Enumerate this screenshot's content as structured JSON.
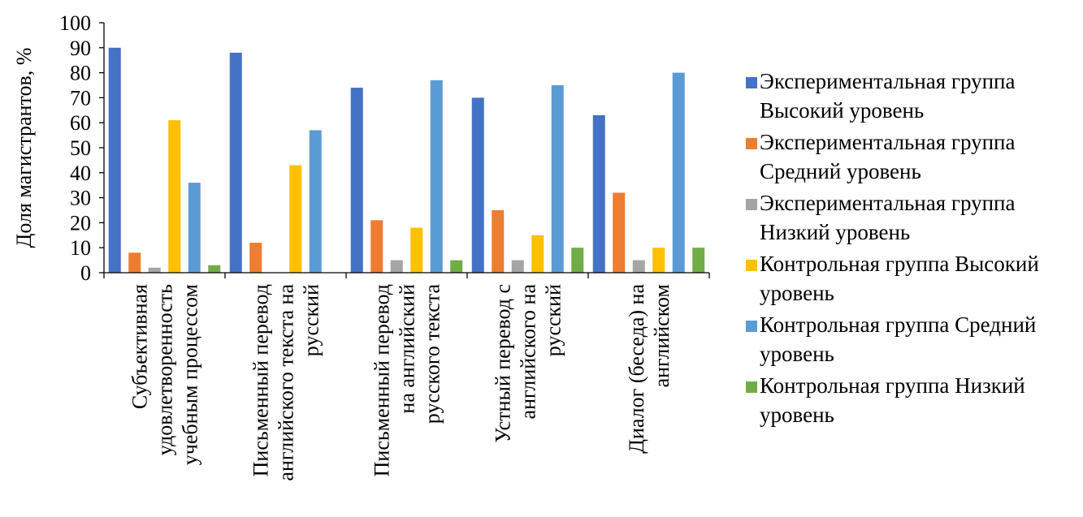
{
  "chart_data": {
    "type": "bar",
    "ylabel": "Доля магистрантов, %",
    "xlabel": "",
    "ylim": [
      0,
      100
    ],
    "yticks": [
      0,
      10,
      20,
      30,
      40,
      50,
      60,
      70,
      80,
      90,
      100
    ],
    "grid": false,
    "legend_position": "right",
    "categories": [
      [
        "Субъективная",
        "удовлетворенность",
        "учебным процессом"
      ],
      [
        "Письменный перевод",
        "английского текста на",
        "русский"
      ],
      [
        "Письменный перевод",
        "на английский",
        "русского текста"
      ],
      [
        "Устный перевод с",
        "английского на",
        "русский"
      ],
      [
        "Диалог (беседа) на",
        "английском"
      ]
    ],
    "series": [
      {
        "name": "Экспериментальная группа\nВысокий уровень",
        "color": "#4472C4",
        "values": [
          90,
          88,
          74,
          70,
          63
        ]
      },
      {
        "name": "Экспериментальная группа\nСредний уровень",
        "color": "#ED7D31",
        "values": [
          8,
          12,
          21,
          25,
          32
        ]
      },
      {
        "name": "Экспериментальная группа\nНизкий уровень",
        "color": "#A5A5A5",
        "values": [
          2,
          0,
          5,
          5,
          5
        ]
      },
      {
        "name": "Контрольная группа Высокий\nуровень",
        "color": "#FFC000",
        "values": [
          61,
          43,
          18,
          15,
          10
        ]
      },
      {
        "name": "Контрольная группа Средний\nуровень",
        "color": "#5B9BD5",
        "values": [
          36,
          57,
          77,
          75,
          80
        ]
      },
      {
        "name": "Контрольная группа Низкий\nуровень",
        "color": "#70AD47",
        "values": [
          3,
          0,
          5,
          10,
          10
        ]
      }
    ]
  }
}
